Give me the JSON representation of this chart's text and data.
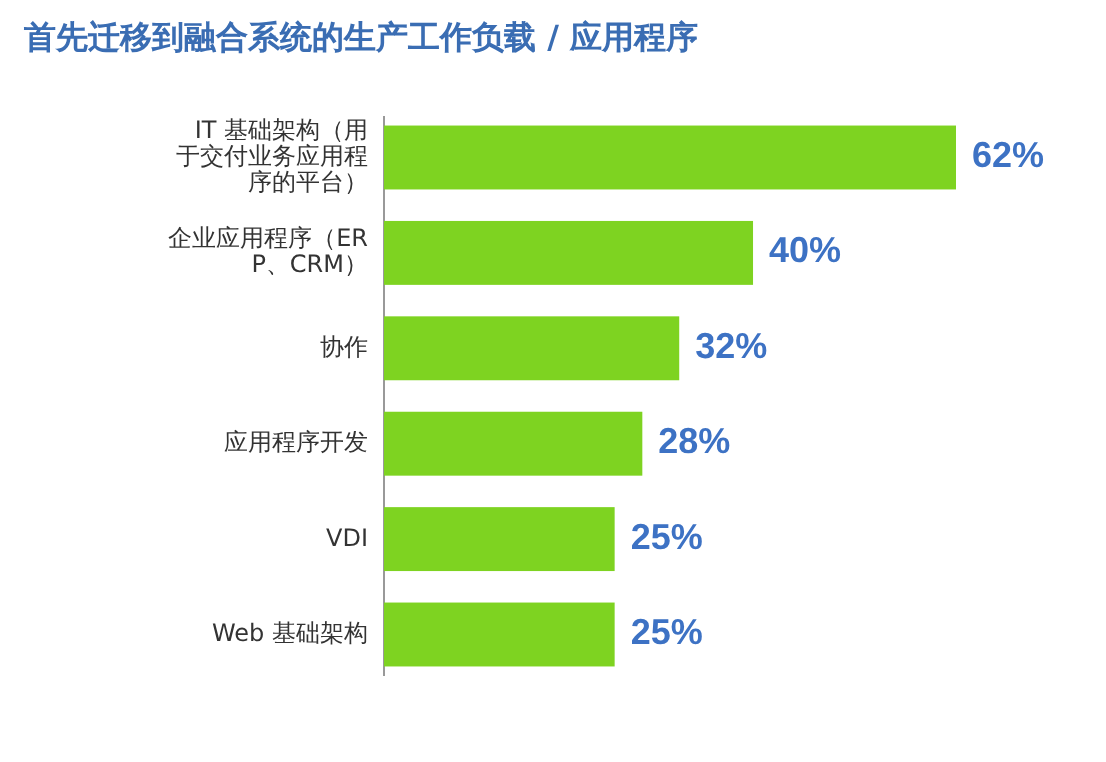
{
  "chart_data": {
    "type": "bar",
    "orientation": "horizontal",
    "title": "首先迁移到融合系统的生产工作负载 / 应用程序",
    "categories": [
      "IT 基础架构（用于交付业务应用程序的平台）",
      "企业应用程序（ERP、CRM）",
      "协作",
      "应用程序开发",
      "VDI",
      "Web 基础架构"
    ],
    "values": [
      62,
      40,
      32,
      28,
      25,
      25
    ],
    "color": "#7ed321",
    "xlim": [
      0,
      62
    ],
    "value_labels": [
      "62%",
      "40%",
      "32%",
      "28%",
      "25%",
      "25%"
    ]
  }
}
